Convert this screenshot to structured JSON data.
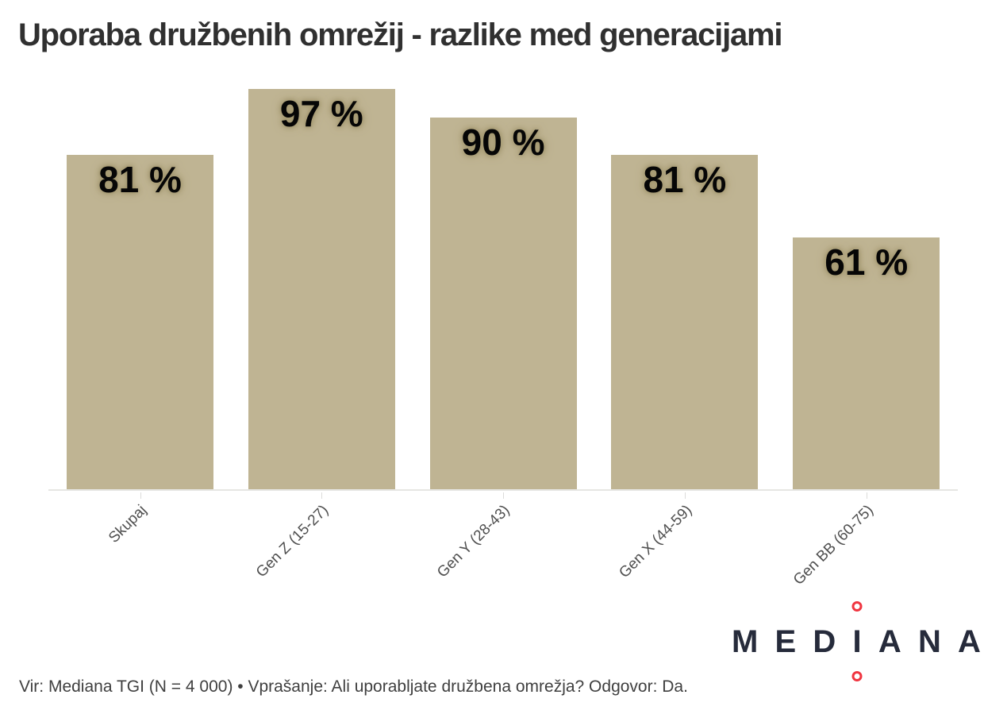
{
  "title": "Uporaba družbenih omrežij - razlike med generacijami",
  "chart_data": {
    "type": "bar",
    "title": "Uporaba družbenih omrežij - razlike med generacijami",
    "categories": [
      "Skupaj",
      "Gen Z (15-27)",
      "Gen Y (28-43)",
      "Gen X (44-59)",
      "Gen BB (60-75)"
    ],
    "values": [
      81,
      97,
      90,
      81,
      61
    ],
    "value_labels": [
      "81 %",
      "97 %",
      "90 %",
      "81 %",
      "61 %"
    ],
    "xlabel": "",
    "ylabel": "",
    "ylim": [
      0,
      100
    ],
    "unit": "%",
    "grid": false,
    "legend": false,
    "bar_color": "#bfb493",
    "label_halo_color": "#a3976f",
    "axis_line_color": "#e6e6e3",
    "tick_label_color": "#4f4f4f"
  },
  "footer": {
    "source_text": "Vir: Mediana TGI (N = 4 000) • Vprašanje: Ali uporabljate družbena omrežja? Odgovor: Da."
  },
  "logo": {
    "name": "MEDIANA",
    "letters": [
      "M",
      "E",
      "D",
      "I",
      "A",
      "N",
      "A"
    ],
    "letter_color": "#262b3b",
    "dot_color": "#f03540"
  }
}
